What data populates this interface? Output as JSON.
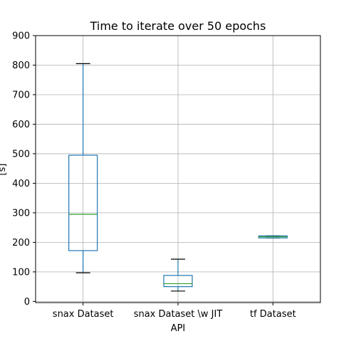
{
  "chart_data": {
    "type": "boxplot",
    "title": "Time to iterate over 50 epochs",
    "xlabel": "API",
    "ylabel": "[s]",
    "ylim": [
      -4,
      900
    ],
    "yticks": [
      0,
      100,
      200,
      300,
      400,
      500,
      600,
      700,
      800,
      900
    ],
    "grid": true,
    "categories": [
      "snax Dataset",
      "snax Dataset \\w JIT",
      "tf Dataset"
    ],
    "boxes": [
      {
        "name": "snax Dataset",
        "whisker_low": 97,
        "q1": 172,
        "median": 295,
        "q3": 495,
        "whisker_high": 805
      },
      {
        "name": "snax Dataset \\w JIT",
        "whisker_low": 35,
        "q1": 50,
        "median": 60,
        "q3": 88,
        "whisker_high": 143
      },
      {
        "name": "tf Dataset",
        "whisker_low": 215,
        "q1": 215,
        "median": 219,
        "q3": 222,
        "whisker_high": 222
      }
    ],
    "colors": {
      "box": "#1f77b4",
      "median": "#2ca02c",
      "whisker_cap": "#000000",
      "grid": "#b0b0b0",
      "axis": "#000000"
    }
  }
}
